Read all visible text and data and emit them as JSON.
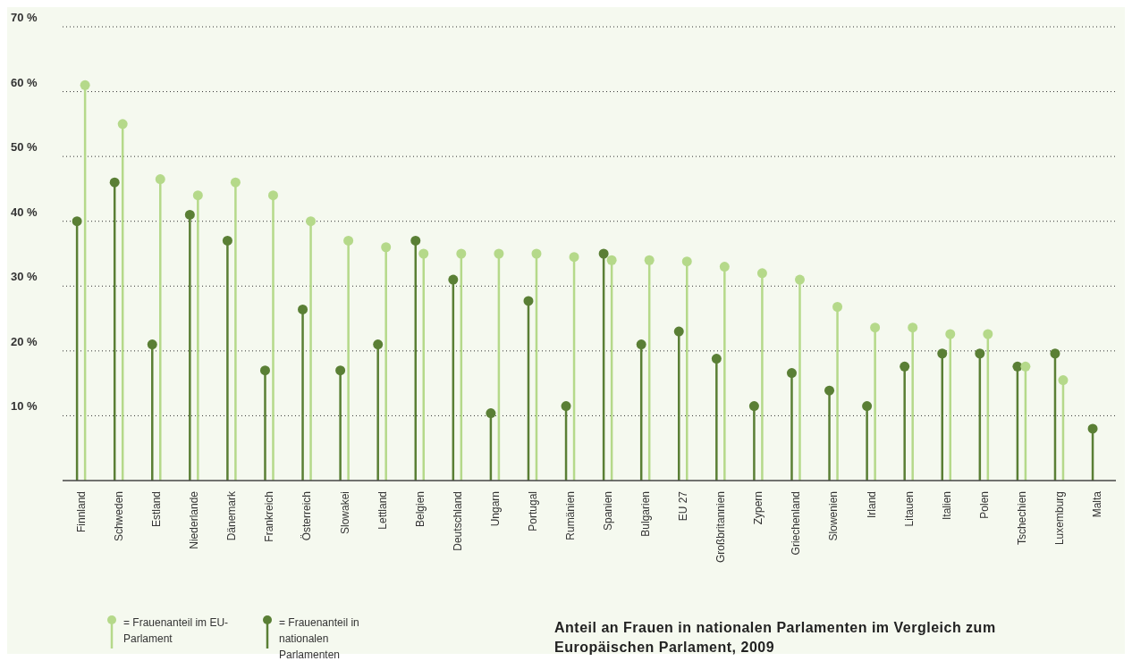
{
  "chart_data": {
    "type": "lollipop",
    "title": "Anteil an Frauen in nationalen Parlamenten im Vergleich zum Europäischen Parlament, 2009",
    "categories": [
      "Finnland",
      "Schweden",
      "Estland",
      "Niederlande",
      "Dänemark",
      "Frankreich",
      "Österreich",
      "Slowakei",
      "Lettland",
      "Belgien",
      "Deutschland",
      "Ungarn",
      "Portugal",
      "Rumänien",
      "Spanien",
      "Bulgarien",
      "EU 27",
      "Großbritannien",
      "Zypern",
      "Griechenland",
      "Slowenien",
      "Irland",
      "Litauen",
      "Italien",
      "Polen",
      "Tschechien",
      "Luxemburg",
      "Malta"
    ],
    "series": [
      {
        "name": "= Frauenanteil im EU-Parlament",
        "color": "#b5d98a",
        "values": [
          61,
          55,
          46.5,
          44,
          46,
          44,
          40,
          37,
          36,
          35,
          35,
          35,
          35,
          34.5,
          34,
          34,
          33.8,
          33,
          32,
          31,
          26.8,
          23.6,
          23.6,
          22.6,
          22.6,
          17.6,
          15.5,
          null
        ]
      },
      {
        "name": "= Frauenanteil in nationalen Parlamenten",
        "color": "#5a7f35",
        "values": [
          40,
          46,
          21,
          41,
          37,
          17,
          26.4,
          17,
          21,
          37,
          31,
          10.4,
          27.7,
          11.5,
          35,
          21,
          23,
          18.8,
          11.5,
          16.6,
          13.9,
          11.5,
          17.6,
          19.6,
          19.6,
          17.6,
          19.6,
          8
        ]
      }
    ],
    "ylim": [
      0,
      70
    ],
    "yticks": [
      {
        "value": 0,
        "label": null
      },
      {
        "value": 10,
        "label": "10 %"
      },
      {
        "value": 20,
        "label": "20 %"
      },
      {
        "value": 30,
        "label": "30 %"
      },
      {
        "value": 40,
        "label": "40 %"
      },
      {
        "value": 50,
        "label": "50 %"
      },
      {
        "value": 60,
        "label": "60 %"
      },
      {
        "value": 70,
        "label": "70 %"
      }
    ],
    "grid": "y",
    "legend": "bottom left",
    "marker": "circle"
  }
}
